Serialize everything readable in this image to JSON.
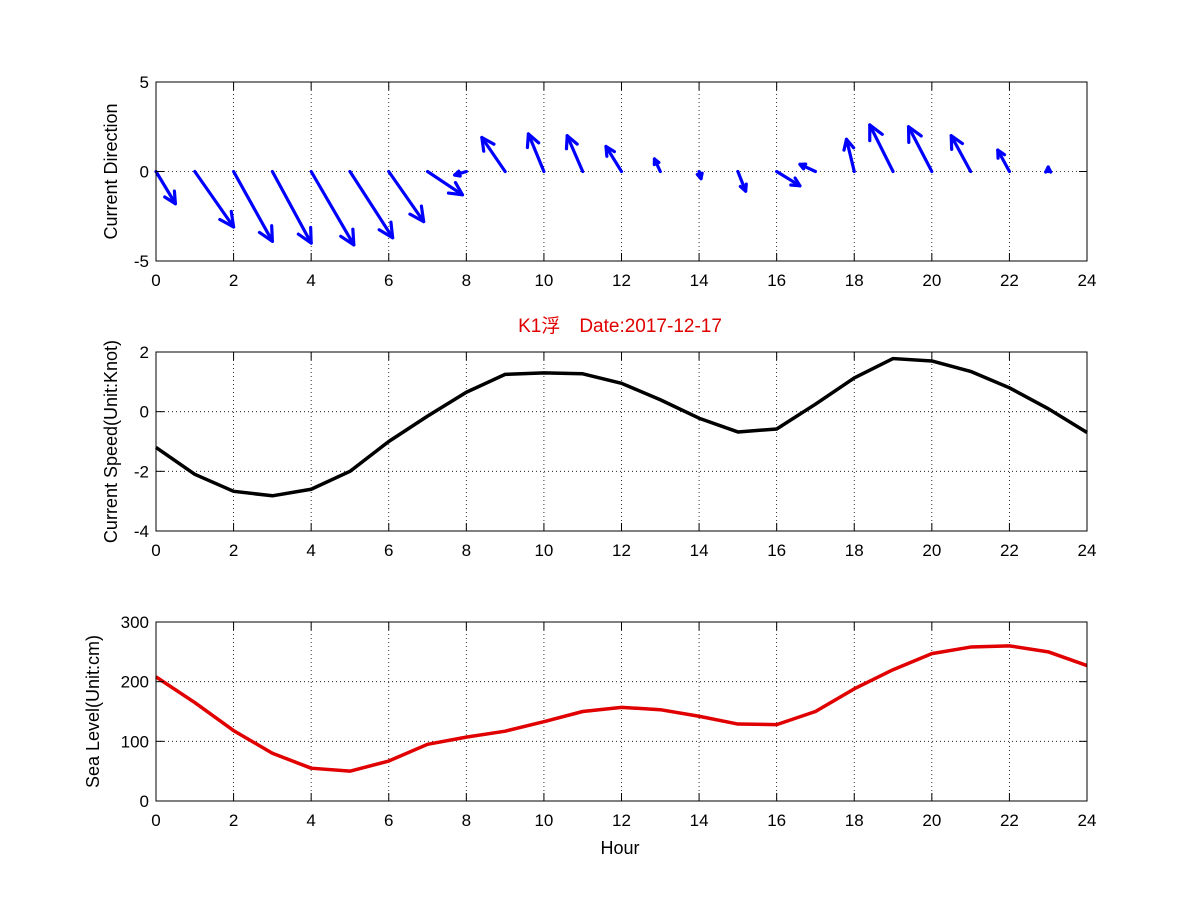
{
  "title": "K1浮　Date:2017-12-17",
  "title_color": "#e00000",
  "xlabel": "Hour",
  "chart_data": [
    {
      "type": "quiver",
      "ylabel": "Current Direction",
      "xlim": [
        0,
        24
      ],
      "ylim": [
        -5,
        5
      ],
      "xticks": [
        "0",
        "2",
        "4",
        "6",
        "8",
        "10",
        "12",
        "14",
        "16",
        "18",
        "20",
        "22",
        "24"
      ],
      "yticks": [
        "-5",
        "0",
        "5"
      ],
      "grid": true,
      "color": "#0000ff",
      "x": [
        0,
        1,
        2,
        3,
        4,
        5,
        6,
        7,
        8,
        9,
        10,
        11,
        12,
        13,
        14,
        15,
        16,
        17,
        18,
        19,
        20,
        21,
        22,
        23
      ],
      "u": [
        0.5,
        1.0,
        1.0,
        1.0,
        1.1,
        1.1,
        0.9,
        0.9,
        -0.3,
        -0.6,
        -0.4,
        -0.4,
        -0.4,
        -0.15,
        0.05,
        0.2,
        0.6,
        -0.4,
        -0.2,
        -0.6,
        -0.6,
        -0.5,
        -0.3,
        0
      ],
      "v": [
        -1.8,
        -3.1,
        -3.9,
        -4.0,
        -4.1,
        -3.7,
        -2.8,
        -1.3,
        -0.2,
        1.9,
        2.1,
        2.0,
        1.4,
        0.7,
        -0.4,
        -1.1,
        -0.8,
        0.4,
        1.8,
        2.6,
        2.5,
        2.0,
        1.2,
        0.25
      ]
    },
    {
      "type": "line",
      "ylabel": "Current Speed(Unit:Knot)",
      "xlim": [
        0,
        24
      ],
      "ylim": [
        -4,
        2
      ],
      "xticks": [
        "0",
        "2",
        "4",
        "6",
        "8",
        "10",
        "12",
        "14",
        "16",
        "18",
        "20",
        "22",
        "24"
      ],
      "yticks": [
        "-4",
        "-2",
        "0",
        "2"
      ],
      "grid": true,
      "color": "#000000",
      "x": [
        0,
        1,
        2,
        3,
        4,
        5,
        6,
        7,
        8,
        9,
        10,
        11,
        12,
        13,
        14,
        15,
        16,
        17,
        18,
        19,
        20,
        21,
        22,
        23,
        24
      ],
      "y": [
        -1.2,
        -2.1,
        -2.67,
        -2.82,
        -2.6,
        -2.0,
        -1.0,
        -0.15,
        0.65,
        1.25,
        1.3,
        1.27,
        0.95,
        0.4,
        -0.22,
        -0.68,
        -0.58,
        0.25,
        1.13,
        1.78,
        1.7,
        1.35,
        0.8,
        0.1,
        -0.7
      ]
    },
    {
      "type": "line",
      "ylabel": "Sea Level(Unit:cm)",
      "xlim": [
        0,
        24
      ],
      "ylim": [
        0,
        300
      ],
      "xticks": [
        "0",
        "2",
        "4",
        "6",
        "8",
        "10",
        "12",
        "14",
        "16",
        "18",
        "20",
        "22",
        "24"
      ],
      "yticks": [
        "0",
        "100",
        "200",
        "300"
      ],
      "grid": true,
      "color": "#e00000",
      "x": [
        0,
        1,
        2,
        3,
        4,
        5,
        6,
        7,
        8,
        9,
        10,
        11,
        12,
        13,
        14,
        15,
        16,
        17,
        18,
        19,
        20,
        21,
        22,
        23,
        24
      ],
      "y": [
        208,
        165,
        118,
        80,
        55,
        50,
        67,
        95,
        107,
        117,
        133,
        150,
        157,
        153,
        142,
        129,
        128,
        150,
        188,
        220,
        247,
        258,
        260,
        250,
        227
      ]
    }
  ]
}
